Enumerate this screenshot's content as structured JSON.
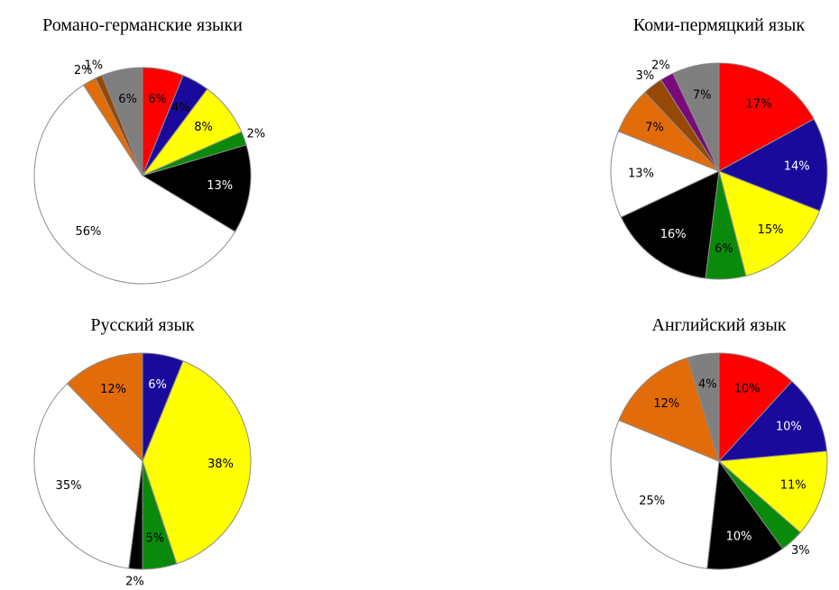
{
  "chart_data": [
    {
      "type": "pie",
      "title": "Романо-германские языки",
      "slices": [
        {
          "value": 6,
          "label": "6%",
          "color": "#ff0000",
          "text_color": "#000000"
        },
        {
          "value": 4,
          "label": "4%",
          "color": "#1a0a9c",
          "text_color": "#000000"
        },
        {
          "value": 8,
          "label": "8%",
          "color": "#ffff00",
          "text_color": "#000000"
        },
        {
          "value": 2,
          "label": "2%",
          "color": "#0a8a0a",
          "text_color": "#000000"
        },
        {
          "value": 13,
          "label": "13%",
          "color": "#000000",
          "text_color": "#ffffff"
        },
        {
          "value": 56,
          "label": "56%",
          "color": "#ffffff",
          "text_color": "#000000"
        },
        {
          "value": 2,
          "label": "2%",
          "color": "#e36c0a",
          "text_color": "#000000"
        },
        {
          "value": 1,
          "label": "1%",
          "color": "#974806",
          "text_color": "#000000"
        },
        {
          "value": 6,
          "label": "6%",
          "color": "#7f7f7f",
          "text_color": "#000000"
        }
      ]
    },
    {
      "type": "pie",
      "title": "Коми-пермяцкий язык",
      "slices": [
        {
          "value": 17,
          "label": "17%",
          "color": "#ff0000",
          "text_color": "#000000"
        },
        {
          "value": 14,
          "label": "14%",
          "color": "#1a0a9c",
          "text_color": "#ffffff"
        },
        {
          "value": 15,
          "label": "15%",
          "color": "#ffff00",
          "text_color": "#000000"
        },
        {
          "value": 6,
          "label": "6%",
          "color": "#0a8a0a",
          "text_color": "#000000"
        },
        {
          "value": 16,
          "label": "16%",
          "color": "#000000",
          "text_color": "#ffffff"
        },
        {
          "value": 13,
          "label": "13%",
          "color": "#ffffff",
          "text_color": "#000000"
        },
        {
          "value": 7,
          "label": "7%",
          "color": "#e36c0a",
          "text_color": "#000000"
        },
        {
          "value": 3,
          "label": "3%",
          "color": "#974806",
          "text_color": "#000000"
        },
        {
          "value": 2,
          "label": "2%",
          "color": "#7a0a7a",
          "text_color": "#000000"
        },
        {
          "value": 7,
          "label": "7%",
          "color": "#7f7f7f",
          "text_color": "#000000"
        }
      ]
    },
    {
      "type": "pie",
      "title": "Русский язык",
      "slices": [
        {
          "value": 6,
          "label": "6%",
          "color": "#1a0a9c",
          "text_color": "#ffffff"
        },
        {
          "value": 38,
          "label": "38%",
          "color": "#ffff00",
          "text_color": "#000000"
        },
        {
          "value": 5,
          "label": "5%",
          "color": "#0a8a0a",
          "text_color": "#000000"
        },
        {
          "value": 2,
          "label": "2%",
          "color": "#000000",
          "text_color": "#000000"
        },
        {
          "value": 35,
          "label": "35%",
          "color": "#ffffff",
          "text_color": "#000000"
        },
        {
          "value": 12,
          "label": "12%",
          "color": "#e36c0a",
          "text_color": "#000000"
        }
      ]
    },
    {
      "type": "pie",
      "title": "Английский язык",
      "slices": [
        {
          "value": 10,
          "label": "10%",
          "color": "#ff0000",
          "text_color": "#000000"
        },
        {
          "value": 10,
          "label": "10%",
          "color": "#1a0a9c",
          "text_color": "#ffffff"
        },
        {
          "value": 11,
          "label": "11%",
          "color": "#ffff00",
          "text_color": "#000000"
        },
        {
          "value": 3,
          "label": "3%",
          "color": "#0a8a0a",
          "text_color": "#000000"
        },
        {
          "value": 10,
          "label": "10%",
          "color": "#000000",
          "text_color": "#ffffff"
        },
        {
          "value": 25,
          "label": "25%",
          "color": "#ffffff",
          "text_color": "#000000"
        },
        {
          "value": 12,
          "label": "12%",
          "color": "#e36c0a",
          "text_color": "#000000"
        },
        {
          "value": 4,
          "label": "4%",
          "color": "#7f7f7f",
          "text_color": "#000000"
        }
      ]
    }
  ]
}
